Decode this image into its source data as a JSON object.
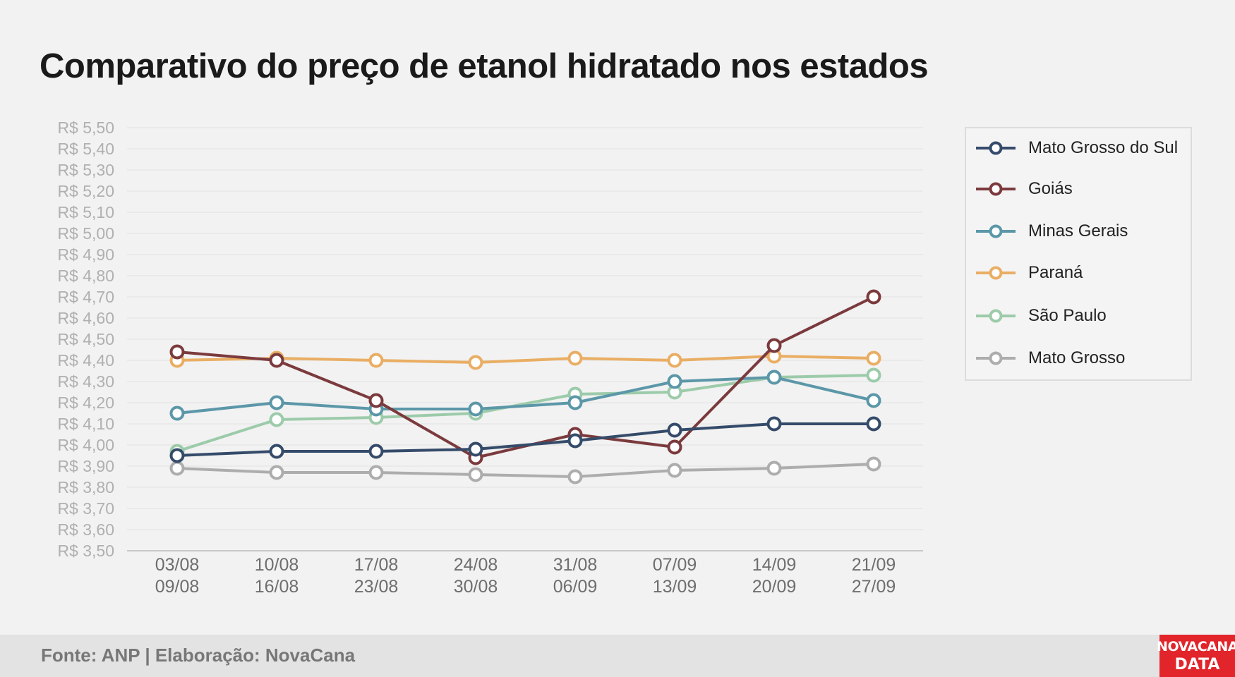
{
  "title": "Comparativo do preço de etanol hidratado nos estados",
  "footer": {
    "source": "Fonte: ANP | Elaboração: NovaCana"
  },
  "logo": {
    "line1": "NOVACANA",
    "line2": "DATA"
  },
  "chart_data": {
    "type": "line",
    "title": "Comparativo do preço de etanol hidratado nos estados",
    "xlabel": "",
    "ylabel": "",
    "ylim": [
      3.5,
      5.5
    ],
    "y_ticks": [
      "R$ 5,50",
      "R$ 5,40",
      "R$ 5,30",
      "R$ 5,20",
      "R$ 5,10",
      "R$ 5,00",
      "R$ 4,90",
      "R$ 4,80",
      "R$ 4,70",
      "R$ 4,60",
      "R$ 4,50",
      "R$ 4,40",
      "R$ 4,30",
      "R$ 4,20",
      "R$ 4,10",
      "R$ 4,00",
      "R$ 3,90",
      "R$ 3,80",
      "R$ 3,70",
      "R$ 3,60",
      "R$ 3,50"
    ],
    "grid": true,
    "legend_position": "right",
    "categories": [
      [
        "03/08",
        "09/08"
      ],
      [
        "10/08",
        "16/08"
      ],
      [
        "17/08",
        "23/08"
      ],
      [
        "24/08",
        "30/08"
      ],
      [
        "31/08",
        "06/09"
      ],
      [
        "07/09",
        "13/09"
      ],
      [
        "14/09",
        "20/09"
      ],
      [
        "21/09",
        "27/09"
      ]
    ],
    "series": [
      {
        "name": "Mato Grosso",
        "color": "#adadad",
        "values": [
          3.89,
          3.87,
          3.87,
          3.86,
          3.85,
          3.88,
          3.89,
          3.91
        ]
      },
      {
        "name": "São Paulo",
        "color": "#9ccbaa",
        "values": [
          3.97,
          4.12,
          4.13,
          4.15,
          4.24,
          4.25,
          4.32,
          4.33
        ]
      },
      {
        "name": "Minas Gerais",
        "color": "#5b97a8",
        "values": [
          4.15,
          4.2,
          4.17,
          4.17,
          4.2,
          4.3,
          4.32,
          4.21
        ]
      },
      {
        "name": "Paraná",
        "color": "#e9ae64",
        "values": [
          4.4,
          4.41,
          4.4,
          4.39,
          4.41,
          4.4,
          4.42,
          4.41
        ]
      },
      {
        "name": "Goiás",
        "color": "#7b3a3d",
        "values": [
          4.44,
          4.4,
          4.21,
          3.94,
          4.05,
          3.99,
          4.47,
          4.7
        ]
      },
      {
        "name": "Mato Grosso do Sul",
        "color": "#354b6a",
        "values": [
          3.95,
          3.97,
          3.97,
          3.98,
          4.02,
          4.07,
          4.1,
          4.1
        ]
      }
    ],
    "legend_order": [
      "Mato Grosso do Sul",
      "Goiás",
      "Minas Gerais",
      "Paraná",
      "São Paulo",
      "Mato Grosso"
    ]
  }
}
